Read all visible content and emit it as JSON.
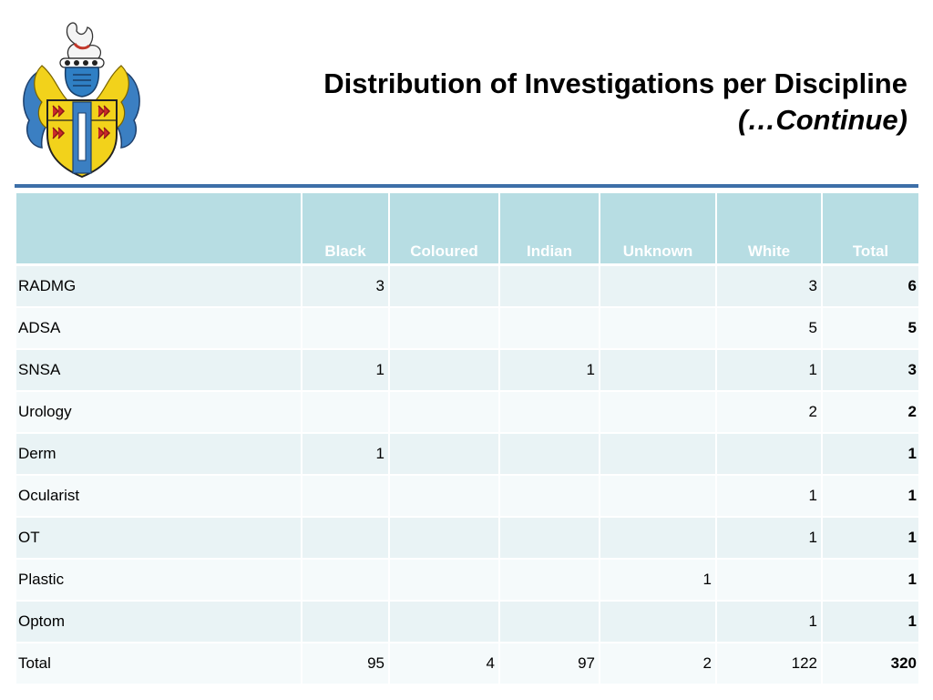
{
  "title": {
    "line1": "Distribution of Investigations per Discipline",
    "line2": "(…Continue)"
  },
  "table": {
    "headers": [
      "",
      "Black",
      "Coloured",
      "Indian",
      "Unknown",
      "White",
      "Total"
    ],
    "rows": [
      [
        "RADMG",
        "3",
        "",
        "",
        "",
        "3",
        "6"
      ],
      [
        "ADSA",
        "",
        "",
        "",
        "",
        "5",
        "5"
      ],
      [
        "SNSA",
        "1",
        "",
        "1",
        "",
        "1",
        "3"
      ],
      [
        "Urology",
        "",
        "",
        "",
        "",
        "2",
        "2"
      ],
      [
        "Derm",
        "1",
        "",
        "",
        "",
        "",
        "1"
      ],
      [
        "Ocularist",
        "",
        "",
        "",
        "",
        "1",
        "1"
      ],
      [
        "OT",
        "",
        "",
        "",
        "",
        "1",
        "1"
      ],
      [
        "Plastic",
        "",
        "",
        "",
        "1",
        "",
        "1"
      ],
      [
        "Optom",
        "",
        "",
        "",
        "",
        "1",
        "1"
      ],
      [
        "Total",
        "95",
        "4",
        "97",
        "2",
        "122",
        "320"
      ]
    ]
  },
  "colors": {
    "header_bg": "#b7dde3",
    "rule": "#3d6fa8",
    "row_odd": "#e9f3f5",
    "row_even": "#f5fafb"
  }
}
